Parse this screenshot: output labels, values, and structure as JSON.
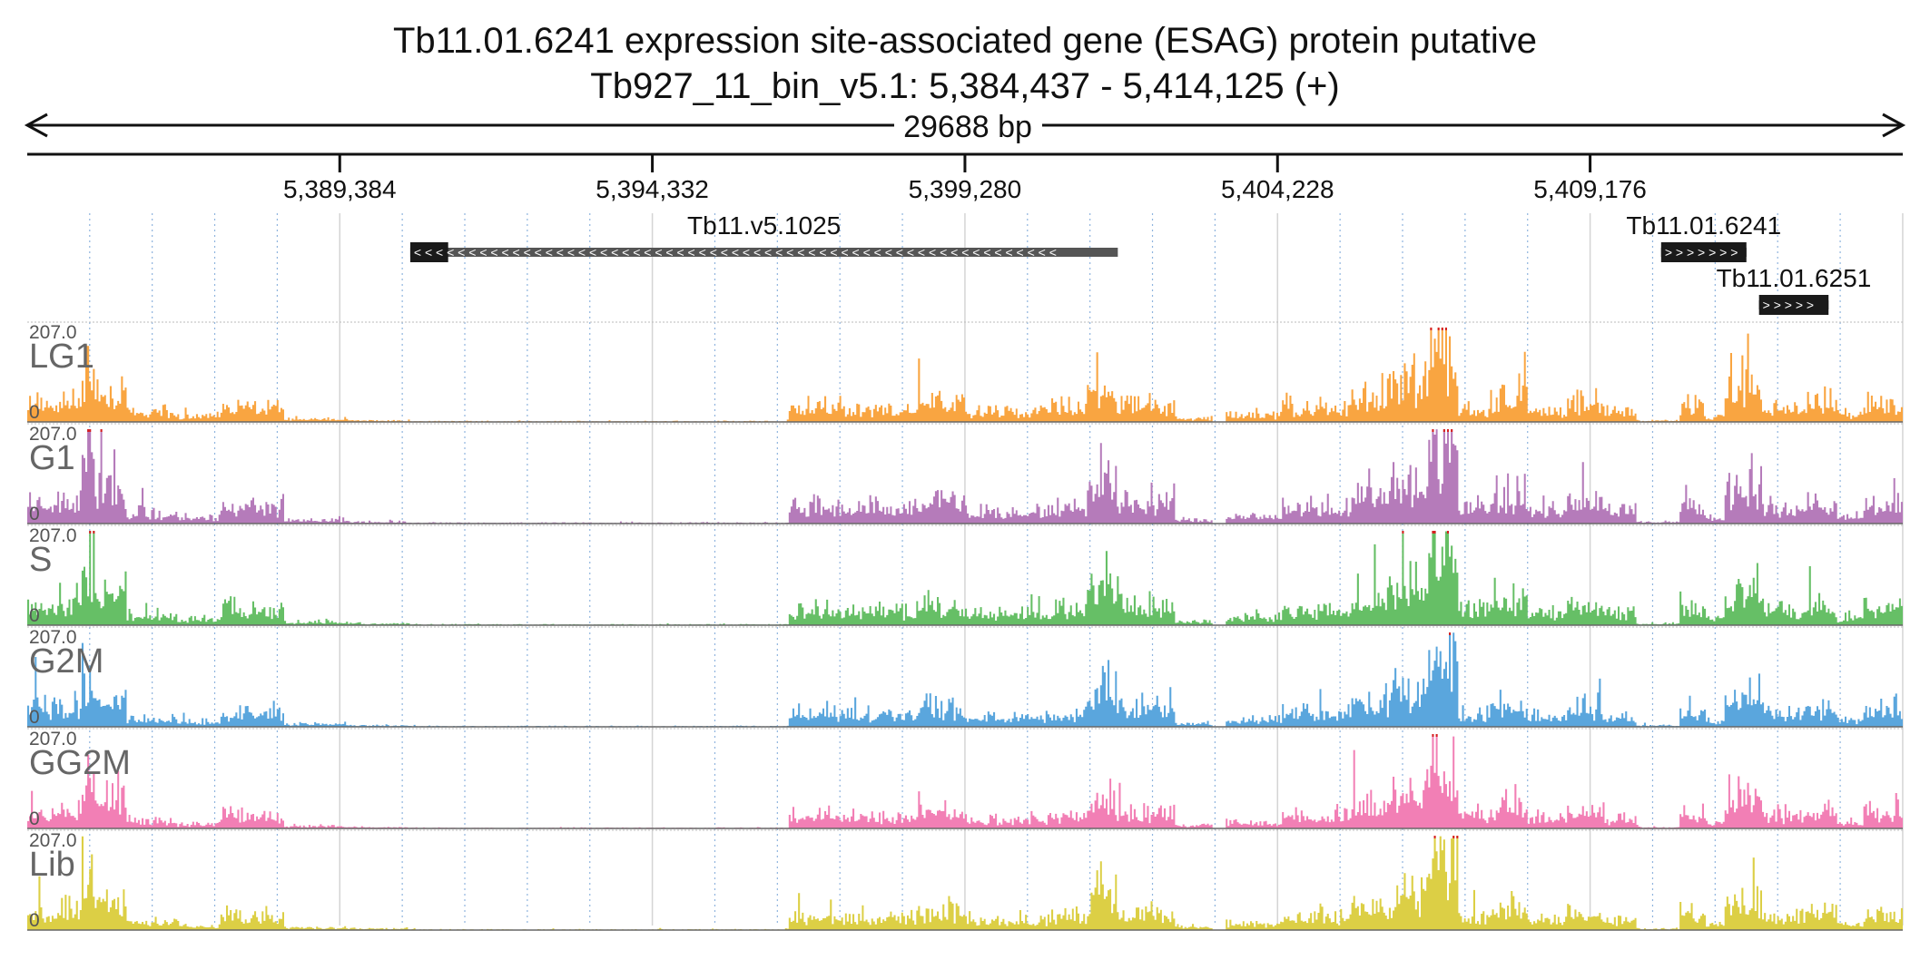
{
  "title_line1": "Tb11.01.6241  expression site-associated gene (ESAG) protein  putative",
  "title_line2": "Tb927_11_bin_v5.1: 5,384,437 - 5,414,125 (+)",
  "span_label": "29688 bp",
  "chart_data": {
    "type": "area",
    "region": {
      "chromosome": "Tb927_11_bin_v5.1",
      "start": 5384437,
      "end": 5414125,
      "strand": "+"
    },
    "x_ticks": [
      5389384,
      5394332,
      5399280,
      5404228,
      5409176
    ],
    "x_tick_labels": [
      "5,389,384",
      "5,394,332",
      "5,399,280",
      "5,404,228",
      "5,409,176"
    ],
    "genes": [
      {
        "name": "Tb11.v5.1025",
        "start": 5390500,
        "end": 5401700,
        "strand": "-",
        "thick_start": 5390500,
        "thick_end": 5391100,
        "color": "#555555"
      },
      {
        "name": "Tb11.01.6241",
        "start": 5410300,
        "end": 5411650,
        "strand": "+",
        "thick_start": 5410300,
        "thick_end": 5411650,
        "color": "#1a1a1a"
      },
      {
        "name": "Tb11.01.6251",
        "start": 5411850,
        "end": 5412950,
        "strand": "+",
        "thick_start": 5411850,
        "thick_end": 5412950,
        "color": "#1a1a1a"
      }
    ],
    "y_range": [
      0,
      207.0
    ],
    "y_max_label": "207.0",
    "y_min_label": "0",
    "tracks": [
      {
        "name": "LG1",
        "color": "#f9a541",
        "seed": 11,
        "gain": 0.95
      },
      {
        "name": "G1",
        "color": "#b57bba",
        "seed": 23,
        "gain": 1.1
      },
      {
        "name": "S",
        "color": "#66bf66",
        "seed": 37,
        "gain": 1.05
      },
      {
        "name": "G2M",
        "color": "#5aa6dd",
        "seed": 41,
        "gain": 0.9
      },
      {
        "name": "GG2M",
        "color": "#f27fb5",
        "seed": 53,
        "gain": 0.85
      },
      {
        "name": "Lib",
        "color": "#dccf45",
        "seed": 67,
        "gain": 0.9
      }
    ],
    "coverage_profile": [
      [
        5384437,
        5385300,
        60
      ],
      [
        5385300,
        5385500,
        170
      ],
      [
        5385500,
        5386000,
        90
      ],
      [
        5386000,
        5386800,
        25
      ],
      [
        5386800,
        5387500,
        15
      ],
      [
        5387500,
        5388500,
        45
      ],
      [
        5388500,
        5389500,
        8
      ],
      [
        5389500,
        5390500,
        4
      ],
      [
        5390500,
        5393000,
        2
      ],
      [
        5393000,
        5396500,
        2
      ],
      [
        5396500,
        5397600,
        40
      ],
      [
        5397600,
        5398500,
        35
      ],
      [
        5398500,
        5399300,
        55
      ],
      [
        5399300,
        5400600,
        30
      ],
      [
        5400600,
        5401200,
        40
      ],
      [
        5401200,
        5401700,
        120
      ],
      [
        5401700,
        5402600,
        50
      ],
      [
        5402600,
        5403200,
        10
      ],
      [
        5403200,
        5403400,
        0
      ],
      [
        5403400,
        5404300,
        20
      ],
      [
        5404300,
        5405400,
        40
      ],
      [
        5405400,
        5406000,
        75
      ],
      [
        5406000,
        5406600,
        110
      ],
      [
        5406600,
        5407100,
        210
      ],
      [
        5407100,
        5407600,
        40
      ],
      [
        5407600,
        5408200,
        70
      ],
      [
        5408200,
        5408800,
        35
      ],
      [
        5408800,
        5409400,
        55
      ],
      [
        5409400,
        5409900,
        30
      ],
      [
        5409900,
        5410600,
        4
      ],
      [
        5410600,
        5411000,
        50
      ],
      [
        5411000,
        5411300,
        15
      ],
      [
        5411300,
        5411900,
        95
      ],
      [
        5411900,
        5412300,
        40
      ],
      [
        5412300,
        5412600,
        40
      ],
      [
        5412600,
        5413100,
        55
      ],
      [
        5413100,
        5413500,
        20
      ],
      [
        5413500,
        5414125,
        50
      ]
    ]
  }
}
